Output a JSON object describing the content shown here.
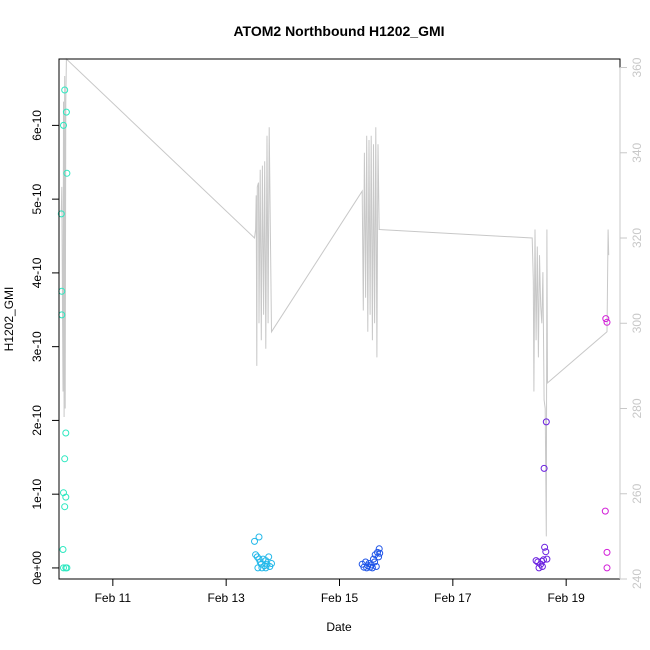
{
  "chart_data": {
    "type": "scatter",
    "title": "ATOM2 Northbound H1202_GMI",
    "xlabel": "Date",
    "ylabel": "H1202_GMI",
    "x_ticks": [
      "Feb 11",
      "Feb 13",
      "Feb 15",
      "Feb 17",
      "Feb 19"
    ],
    "y_ticks": [
      "0e+00",
      "1e-10",
      "2e-10",
      "3e-10",
      "4e-10",
      "5e-10",
      "6e-10"
    ],
    "y2_ticks": [
      "240",
      "260",
      "280",
      "300",
      "320",
      "340",
      "360"
    ],
    "xlim_days": [
      10.05,
      19.95
    ],
    "ylim": [
      -1.5e-11,
      6.9e-10
    ],
    "y2lim": [
      240,
      362
    ],
    "grid": false,
    "legend": "none",
    "colors": {
      "line": "#c8c8c8",
      "right_axis": "#c8c8c8",
      "frame": "#000000"
    },
    "series": [
      {
        "color": "#2de8c0",
        "points": [
          [
            10.09,
            4.8e-10
          ],
          [
            10.1,
            3.75e-10
          ],
          [
            10.1,
            3.43e-10
          ],
          [
            10.13,
            6e-10
          ],
          [
            10.15,
            6.48e-10
          ],
          [
            10.18,
            6.18e-10
          ],
          [
            10.19,
            5.35e-10
          ],
          [
            10.17,
            1.83e-10
          ],
          [
            10.15,
            1.48e-10
          ],
          [
            10.13,
            1.02e-10
          ],
          [
            10.17,
            9.6e-11
          ],
          [
            10.15,
            8.3e-11
          ],
          [
            10.12,
            2.5e-11
          ],
          [
            10.13,
            0
          ],
          [
            10.17,
            0
          ],
          [
            10.19,
            0
          ]
        ]
      },
      {
        "color": "#22b8ea",
        "points": [
          [
            13.5,
            3.6e-11
          ],
          [
            13.58,
            4.2e-11
          ],
          [
            13.52,
            1.8e-11
          ],
          [
            13.55,
            1.5e-11
          ],
          [
            13.58,
            1.2e-11
          ],
          [
            13.6,
            8e-12
          ],
          [
            13.62,
            5e-12
          ],
          [
            13.65,
            1.2e-11
          ],
          [
            13.68,
            3e-12
          ],
          [
            13.7,
            1e-11
          ],
          [
            13.72,
            5e-12
          ],
          [
            13.75,
            1.5e-11
          ],
          [
            13.77,
            2e-12
          ],
          [
            13.8,
            6e-12
          ],
          [
            13.56,
            0
          ],
          [
            13.63,
            0
          ],
          [
            13.7,
            0
          ]
        ]
      },
      {
        "color": "#1f55e8",
        "points": [
          [
            15.4,
            5e-12
          ],
          [
            15.43,
            1e-12
          ],
          [
            15.46,
            8e-12
          ],
          [
            15.48,
            0
          ],
          [
            15.5,
            3e-12
          ],
          [
            15.52,
            6e-12
          ],
          [
            15.54,
            1e-12
          ],
          [
            15.56,
            4e-12
          ],
          [
            15.58,
            0
          ],
          [
            15.6,
            1.2e-11
          ],
          [
            15.62,
            8e-12
          ],
          [
            15.63,
            1.8e-11
          ],
          [
            15.65,
            2e-12
          ],
          [
            15.67,
            2.1e-11
          ],
          [
            15.69,
            1.5e-11
          ],
          [
            15.7,
            2.6e-11
          ],
          [
            15.71,
            2e-11
          ]
        ]
      },
      {
        "color": "#6a1fe0",
        "points": [
          [
            18.47,
            1e-11
          ],
          [
            18.5,
            8e-12
          ],
          [
            18.52,
            0
          ],
          [
            18.55,
            5e-12
          ],
          [
            18.57,
            9e-12
          ],
          [
            18.58,
            2e-12
          ],
          [
            18.6,
            1.1e-11
          ],
          [
            18.62,
            2.8e-11
          ],
          [
            18.64,
            2.2e-11
          ],
          [
            18.66,
            1.2e-11
          ],
          [
            18.61,
            1.35e-10
          ],
          [
            18.65,
            1.98e-10
          ]
        ]
      },
      {
        "color": "#d21ed8",
        "points": [
          [
            19.7,
            3.38e-10
          ],
          [
            19.72,
            3.33e-10
          ],
          [
            19.69,
            7.7e-11
          ],
          [
            19.72,
            2.1e-11
          ],
          [
            19.72,
            0
          ]
        ]
      }
    ],
    "line_series": {
      "axis": "right",
      "points": [
        [
          10.09,
          326
        ],
        [
          10.1,
          332
        ],
        [
          10.11,
          307
        ],
        [
          10.12,
          284
        ],
        [
          10.13,
          352
        ],
        [
          10.14,
          278
        ],
        [
          10.15,
          358
        ],
        [
          10.16,
          280
        ],
        [
          10.17,
          352
        ],
        [
          10.18,
          362
        ],
        [
          13.5,
          320
        ],
        [
          13.52,
          322
        ],
        [
          13.53,
          330
        ],
        [
          13.54,
          290
        ],
        [
          13.55,
          332
        ],
        [
          13.57,
          333
        ],
        [
          13.58,
          300
        ],
        [
          13.6,
          336
        ],
        [
          13.62,
          296
        ],
        [
          13.64,
          337
        ],
        [
          13.66,
          302
        ],
        [
          13.68,
          338
        ],
        [
          13.7,
          294
        ],
        [
          13.72,
          344
        ],
        [
          13.74,
          300
        ],
        [
          13.76,
          346
        ],
        [
          13.8,
          298
        ],
        [
          15.4,
          331
        ],
        [
          15.42,
          303
        ],
        [
          15.44,
          340
        ],
        [
          15.46,
          306
        ],
        [
          15.48,
          344
        ],
        [
          15.5,
          298
        ],
        [
          15.52,
          343
        ],
        [
          15.54,
          302
        ],
        [
          15.56,
          344
        ],
        [
          15.58,
          296
        ],
        [
          15.6,
          342
        ],
        [
          15.62,
          300
        ],
        [
          15.64,
          346
        ],
        [
          15.66,
          292
        ],
        [
          15.68,
          342
        ],
        [
          15.7,
          322
        ],
        [
          18.4,
          320
        ],
        [
          18.42,
          310
        ],
        [
          18.43,
          284
        ],
        [
          18.45,
          322
        ],
        [
          18.47,
          296
        ],
        [
          18.49,
          318
        ],
        [
          18.51,
          292
        ],
        [
          18.53,
          316
        ],
        [
          18.55,
          304
        ],
        [
          18.57,
          300
        ],
        [
          18.59,
          312
        ],
        [
          18.61,
          282
        ],
        [
          18.63,
          280
        ],
        [
          18.65,
          250
        ],
        [
          18.66,
          322
        ],
        [
          18.67,
          286
        ],
        [
          19.72,
          298
        ],
        [
          19.74,
          322
        ],
        [
          19.75,
          316
        ]
      ]
    }
  }
}
